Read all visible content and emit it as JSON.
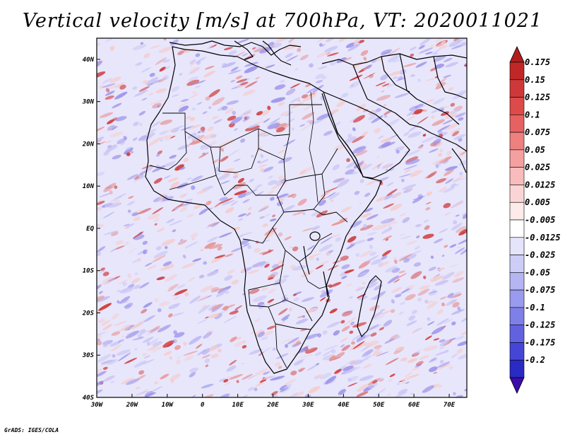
{
  "title": "Vertical velocity [m/s] at 700hPa, VT: 2020011021",
  "footer": "GrADS: IGES/COLA",
  "map": {
    "lon_range": [
      -30,
      75
    ],
    "lat_range": [
      -40,
      45
    ],
    "lat_ticks": [
      {
        "value": 40,
        "label": "40N"
      },
      {
        "value": 30,
        "label": "30N"
      },
      {
        "value": 20,
        "label": "20N"
      },
      {
        "value": 10,
        "label": "10N"
      },
      {
        "value": 0,
        "label": "EQ"
      },
      {
        "value": -10,
        "label": "10S"
      },
      {
        "value": -20,
        "label": "20S"
      },
      {
        "value": -30,
        "label": "30S"
      },
      {
        "value": -40,
        "label": "40S"
      }
    ],
    "lon_ticks": [
      {
        "value": -30,
        "label": "30W"
      },
      {
        "value": -20,
        "label": "20W"
      },
      {
        "value": -10,
        "label": "10W"
      },
      {
        "value": 0,
        "label": "0"
      },
      {
        "value": 10,
        "label": "10E"
      },
      {
        "value": 20,
        "label": "20E"
      },
      {
        "value": 30,
        "label": "30E"
      },
      {
        "value": 40,
        "label": "40E"
      },
      {
        "value": 50,
        "label": "50E"
      },
      {
        "value": 60,
        "label": "60E"
      },
      {
        "value": 70,
        "label": "70E"
      }
    ]
  },
  "colorbar": {
    "top_color": "#b01e1e",
    "bottom_color": "#3a0da8",
    "levels": [
      {
        "label": "0.175",
        "color": "#c02828"
      },
      {
        "label": "0.15",
        "color": "#cf3838"
      },
      {
        "label": "0.125",
        "color": "#dc4a4a"
      },
      {
        "label": "0.1",
        "color": "#e66262"
      },
      {
        "label": "0.075",
        "color": "#ee8080"
      },
      {
        "label": "0.05",
        "color": "#f4a0a0"
      },
      {
        "label": "0.025",
        "color": "#f8bcbc"
      },
      {
        "label": "0.0125",
        "color": "#fbd5d5"
      },
      {
        "label": "0.005",
        "color": "#fdeaea"
      },
      {
        "label": "-0.005",
        "color": "#ffffff"
      },
      {
        "label": "-0.0125",
        "color": "#e4e4fb"
      },
      {
        "label": "-0.025",
        "color": "#cdcdf7"
      },
      {
        "label": "-0.05",
        "color": "#b5b5f2"
      },
      {
        "label": "-0.075",
        "color": "#9a9aee"
      },
      {
        "label": "-0.1",
        "color": "#7f7fe8"
      },
      {
        "label": "-0.125",
        "color": "#6262e0"
      },
      {
        "label": "-0.175",
        "color": "#4646d6"
      },
      {
        "label": "-0.2",
        "color": "#2a2ac4"
      }
    ]
  },
  "field_colors": {
    "background": "#e8e6fb",
    "weak_down": "#c9c6f4",
    "mid_down": "#9d96ea",
    "weak_up": "#f4cccc",
    "mid_up": "#e69595",
    "strong_up": "#cf3c3c",
    "coast": "#000000"
  }
}
